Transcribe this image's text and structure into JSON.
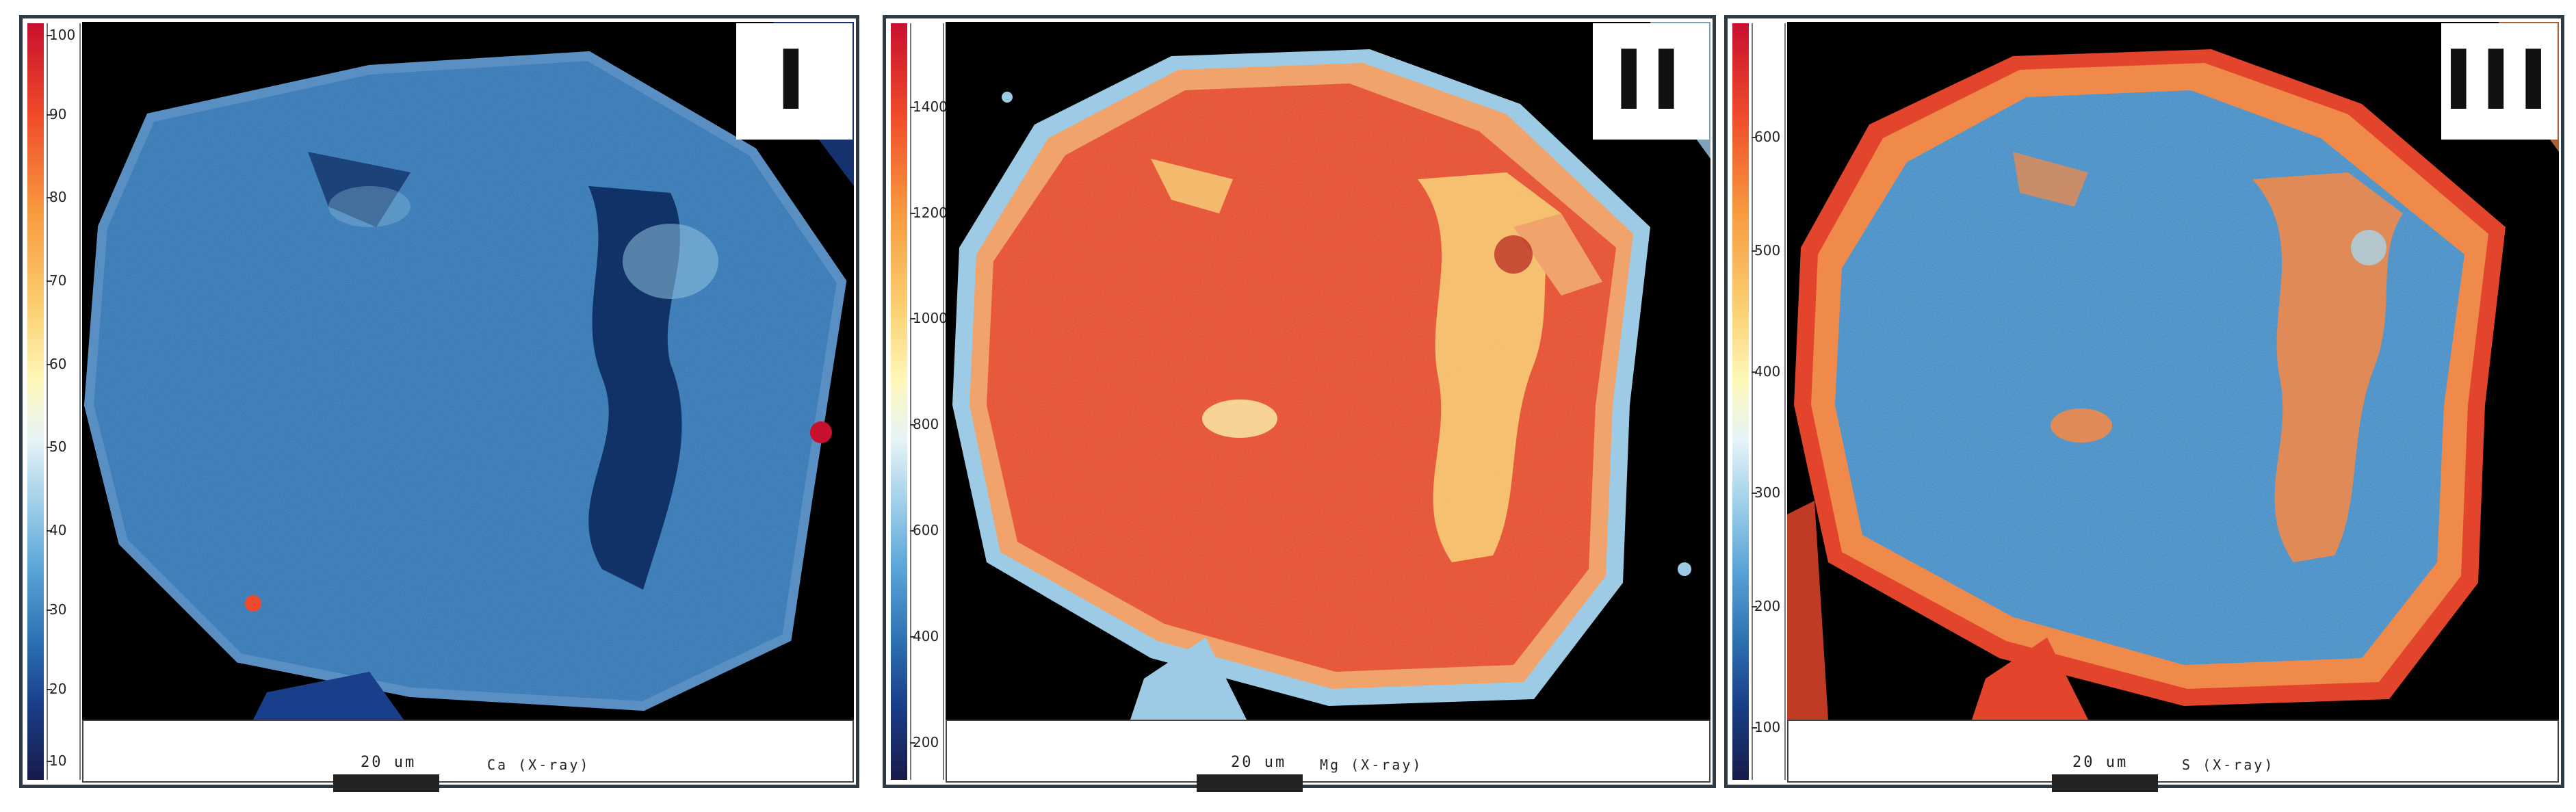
{
  "panels": [
    {
      "id": "I",
      "label": "I",
      "element": "Ca (X-ray)",
      "scale": "20 um",
      "ticks": [
        "100",
        "90",
        "80",
        "70",
        "60",
        "50",
        "40",
        "30",
        "20",
        "10"
      ],
      "colors": {
        "background": "#000000",
        "grain": "#2c6fae",
        "rim": "#5a8fc3",
        "highlight": "#8fc2e0",
        "dark": "#0b2a5e"
      }
    },
    {
      "id": "II",
      "label": "II",
      "element": "Mg (X-ray)",
      "scale": "20 um",
      "ticks": [
        "1400",
        "1200",
        "1000",
        "800",
        "600",
        "400",
        "200"
      ],
      "colors": {
        "background": "#000000",
        "grain": "#e4452a",
        "rim": "#f0a36a",
        "highlight": "#f8e0a0",
        "edge": "#9dcbe6"
      }
    },
    {
      "id": "III",
      "label": "III",
      "element": "S (X-ray)",
      "scale": "20 um",
      "ticks": [
        "600",
        "500",
        "400",
        "300",
        "200",
        "100"
      ],
      "colors": {
        "background": "#000000",
        "grain": "#3a86c2",
        "rim": "#f08a4a",
        "highlight": "#a8d4ea",
        "edge": "#e2452c"
      }
    }
  ]
}
